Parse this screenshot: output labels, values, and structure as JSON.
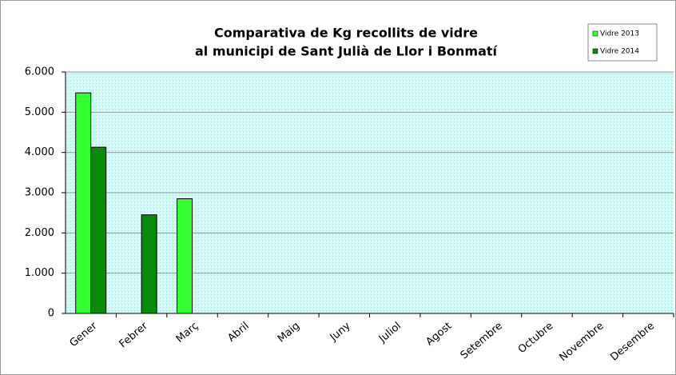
{
  "chart_data": {
    "type": "bar",
    "title": [
      "Comparativa de Kg recollits de vidre",
      "al municipi de Sant Julià de Llor i Bonmatí"
    ],
    "categories": [
      "Gener",
      "Febrer",
      "Març",
      "Abril",
      "Maig",
      "Juny",
      "Juliol",
      "Agost",
      "Setembre",
      "Octubre",
      "Novembre",
      "Desembre"
    ],
    "series": [
      {
        "name": "Vidre 2013",
        "color": "#33ff33",
        "values": [
          5480,
          null,
          2850,
          null,
          null,
          null,
          null,
          null,
          null,
          null,
          null,
          null
        ]
      },
      {
        "name": "Vidre 2014",
        "color": "#0a8a0a",
        "values": [
          4130,
          2450,
          null,
          null,
          null,
          null,
          null,
          null,
          null,
          null,
          null,
          null
        ]
      }
    ],
    "ylim": [
      0,
      6000
    ],
    "yticks": [
      0,
      {
        "value": 1000,
        "label": "1.000"
      },
      {
        "value": 2000,
        "label": "2.000"
      },
      {
        "value": 3000,
        "label": "3.000"
      },
      {
        "value": 4000,
        "label": "4.000"
      },
      {
        "value": 5000,
        "label": "5.000"
      },
      {
        "value": 6000,
        "label": "6.000"
      }
    ],
    "grid": true,
    "legend": "top-right"
  }
}
